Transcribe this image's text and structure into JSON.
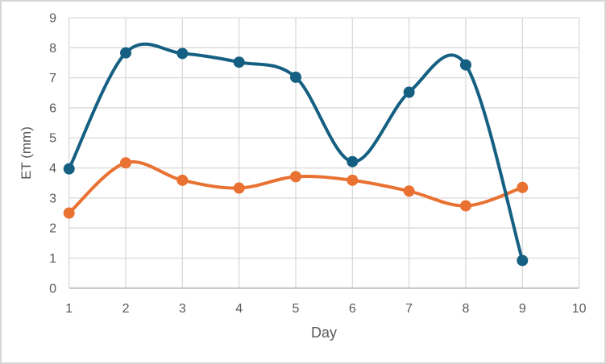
{
  "chart_data": {
    "type": "line",
    "title": "",
    "xlabel": "Day",
    "ylabel": "ET (mm)",
    "x": [
      1,
      2,
      3,
      4,
      5,
      6,
      7,
      8,
      9
    ],
    "series": [
      {
        "id": "series-1",
        "name": "blue ET series",
        "color": "#156082",
        "values": [
          3.97,
          7.83,
          7.81,
          7.52,
          7.02,
          4.21,
          6.52,
          7.43,
          0.92
        ]
      },
      {
        "id": "series-2",
        "name": "orange ET series",
        "color": "#E97132",
        "values": [
          2.5,
          4.17,
          3.59,
          3.33,
          3.71,
          3.59,
          3.23,
          2.74,
          3.35
        ]
      }
    ],
    "xlim": [
      1,
      10
    ],
    "ylim": [
      0,
      9
    ],
    "x_ticks": [
      1,
      2,
      3,
      4,
      5,
      6,
      7,
      8,
      9,
      10
    ],
    "y_ticks": [
      0,
      1,
      2,
      3,
      4,
      5,
      6,
      7,
      8,
      9
    ],
    "grid": true,
    "smooth": true,
    "markers": true,
    "legend": "none"
  },
  "theme": {
    "background": "#FFFFFF",
    "border_color": "#D6D6D6",
    "grid_color": "#D9D9D9",
    "axis_line_color": "#BFBFBF",
    "tick_label_color": "#595959",
    "axis_title_color": "#595959"
  }
}
